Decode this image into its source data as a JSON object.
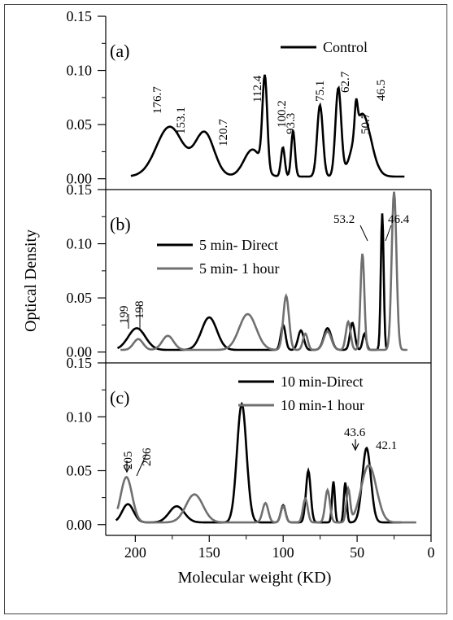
{
  "figure": {
    "ylabel": "Optical Density",
    "xlabel": "Molecular weight (KD)",
    "x_ticks": [
      "200",
      "150",
      "100",
      "50",
      "0"
    ],
    "y_ticks": [
      "0.00",
      "0.05",
      "0.10",
      "0.15"
    ]
  },
  "colors": {
    "black": "#000000",
    "gray": "#707070"
  },
  "chart_data": [
    {
      "type": "line",
      "panel_label": "(a)",
      "xlim": [
        220,
        0
      ],
      "ylim": [
        -0.01,
        0.15
      ],
      "series": [
        {
          "name": "Control",
          "color": "#000000",
          "peaks": [
            [
              176.7,
              0.046,
              28
            ],
            [
              153.1,
              0.04,
              20
            ],
            [
              120.7,
              0.025,
              18
            ],
            [
              112.4,
              0.085,
              5
            ],
            [
              100.2,
              0.027,
              4
            ],
            [
              93.3,
              0.042,
              4
            ],
            [
              75.1,
              0.066,
              6
            ],
            [
              62.7,
              0.081,
              6
            ],
            [
              50.7,
              0.027,
              3
            ],
            [
              46.5,
              0.058,
              18
            ]
          ],
          "range": [
            203,
            18
          ]
        }
      ],
      "annotations": [
        "176.7",
        "153.1",
        "120.7",
        "112.4",
        "100.2",
        "93.3",
        "75.1",
        "62.7",
        "50.7",
        "46.5"
      ]
    },
    {
      "type": "line",
      "panel_label": "(b)",
      "xlim": [
        220,
        0
      ],
      "ylim": [
        -0.01,
        0.15
      ],
      "series": [
        {
          "name": "5 min- Direct",
          "color": "#000000",
          "peaks": [
            [
              199,
              0.02,
              18
            ],
            [
              150,
              0.03,
              16
            ],
            [
              100,
              0.023,
              5
            ],
            [
              88,
              0.018,
              6
            ],
            [
              70,
              0.02,
              8
            ],
            [
              53.2,
              0.025,
              5
            ],
            [
              45,
              0.015,
              4
            ],
            [
              33,
              0.126,
              3
            ]
          ],
          "range": [
            212,
            30
          ]
        },
        {
          "name": "5 min- 1 hour",
          "color": "#707070",
          "peaks": [
            [
              198,
              0.01,
              10
            ],
            [
              178,
              0.013,
              12
            ],
            [
              124,
              0.033,
              18
            ],
            [
              98,
              0.05,
              6
            ],
            [
              85,
              0.015,
              5
            ],
            [
              70,
              0.017,
              8
            ],
            [
              56,
              0.026,
              5
            ],
            [
              46.4,
              0.089,
              4
            ],
            [
              25,
              0.146,
              5
            ]
          ],
          "range": [
            210,
            16
          ]
        }
      ],
      "annotations": [
        "199",
        "198",
        "53.2",
        "46.4"
      ]
    },
    {
      "type": "line",
      "panel_label": "(c)",
      "xlim": [
        220,
        0
      ],
      "ylim": [
        -0.01,
        0.15
      ],
      "series": [
        {
          "name": "10 min-Direct",
          "color": "#000000",
          "peaks": [
            [
              205,
              0.017,
              12
            ],
            [
              172,
              0.015,
              16
            ],
            [
              128,
              0.11,
              10
            ],
            [
              100,
              0.016,
              5
            ],
            [
              83,
              0.048,
              5
            ],
            [
              66,
              0.038,
              3
            ],
            [
              58,
              0.037,
              3
            ],
            [
              43.6,
              0.069,
              9
            ]
          ],
          "range": [
            213,
            20
          ]
        },
        {
          "name": "10 min-1 hour",
          "color": "#707070",
          "peaks": [
            [
              206,
              0.042,
              12
            ],
            [
              160,
              0.026,
              18
            ],
            [
              112,
              0.018,
              6
            ],
            [
              100,
              0.015,
              5
            ],
            [
              85,
              0.022,
              5
            ],
            [
              70,
              0.03,
              5
            ],
            [
              56,
              0.03,
              4
            ],
            [
              42.1,
              0.053,
              16
            ]
          ],
          "range": [
            212,
            10
          ]
        }
      ],
      "annotations": [
        "205",
        "206",
        "43.6",
        "42.1"
      ]
    }
  ]
}
